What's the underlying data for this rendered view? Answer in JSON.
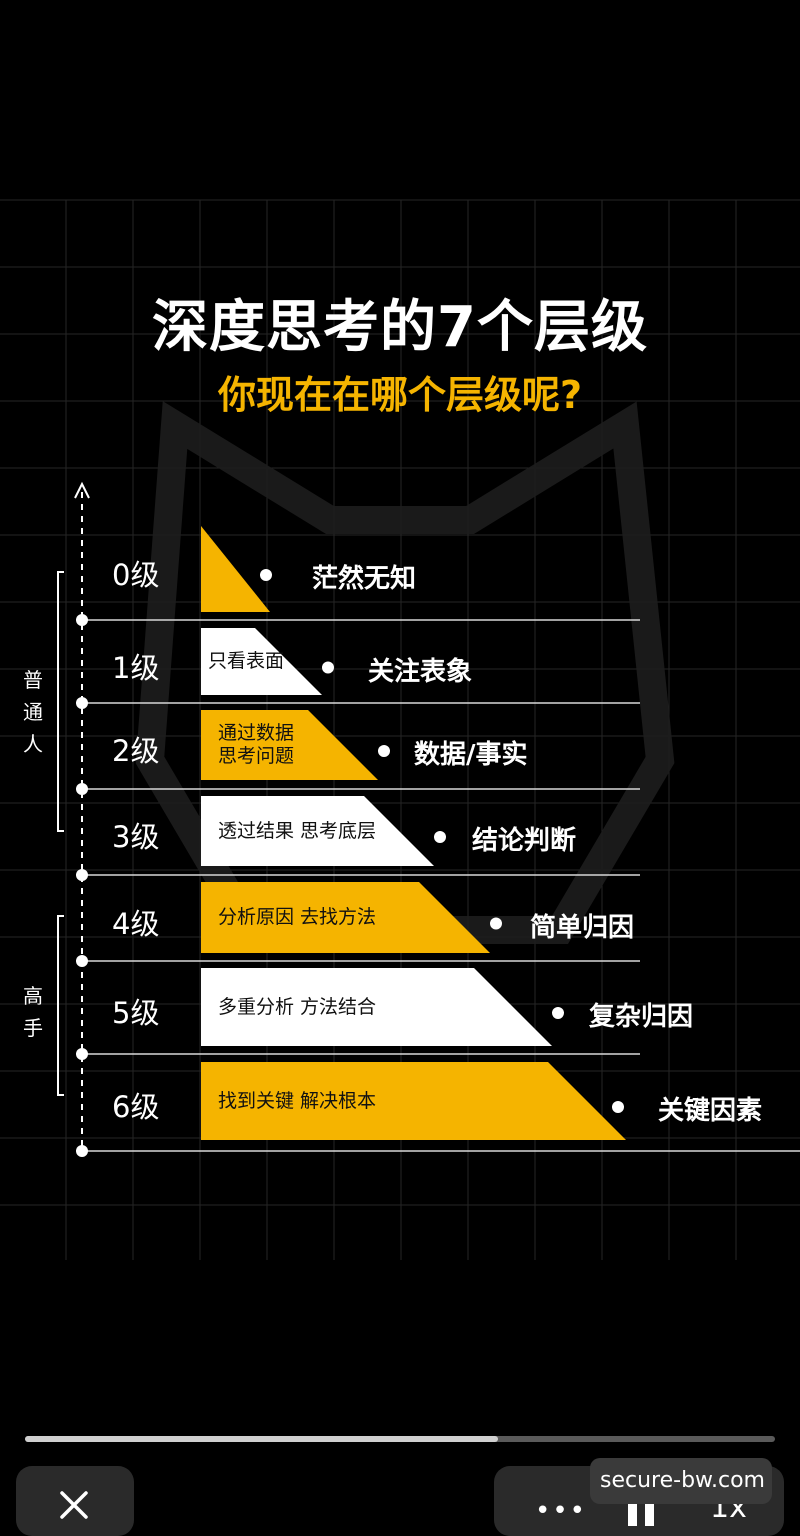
{
  "title": "深度思考的7个层级",
  "subtitle": "你现在在哪个层级呢?",
  "colors": {
    "accent": "#f5b400",
    "white_bar": "#ffffff",
    "background": "#000000"
  },
  "groups": [
    {
      "chars": [
        "普",
        "通",
        "人"
      ]
    },
    {
      "chars": [
        "高",
        "手"
      ]
    }
  ],
  "levels": [
    {
      "label": "0级",
      "bar_lines": [],
      "result": "茫然无知",
      "bar_color": "yellow"
    },
    {
      "label": "1级",
      "bar_lines": [
        "只看表面"
      ],
      "result": "关注表象",
      "bar_color": "white"
    },
    {
      "label": "2级",
      "bar_lines": [
        "通过数据",
        "思考问题"
      ],
      "result": "数据/事实",
      "bar_color": "yellow"
    },
    {
      "label": "3级",
      "bar_lines": [
        "透过结果 思考底层"
      ],
      "result": "结论判断",
      "bar_color": "white"
    },
    {
      "label": "4级",
      "bar_lines": [
        "分析原因 去找方法"
      ],
      "result": "简单归因",
      "bar_color": "yellow"
    },
    {
      "label": "5级",
      "bar_lines": [
        "多重分析 方法结合"
      ],
      "result": "复杂归因",
      "bar_color": "white"
    },
    {
      "label": "6级",
      "bar_lines": [
        "找到关键 解决根本"
      ],
      "result": "关键因素",
      "bar_color": "yellow"
    }
  ],
  "player": {
    "progress": 0.63,
    "more_label": "•••",
    "speed_label": "1x",
    "watermark": "secure-bw.com",
    "close_icon": "close-icon",
    "pause_icon": "pause-icon"
  }
}
